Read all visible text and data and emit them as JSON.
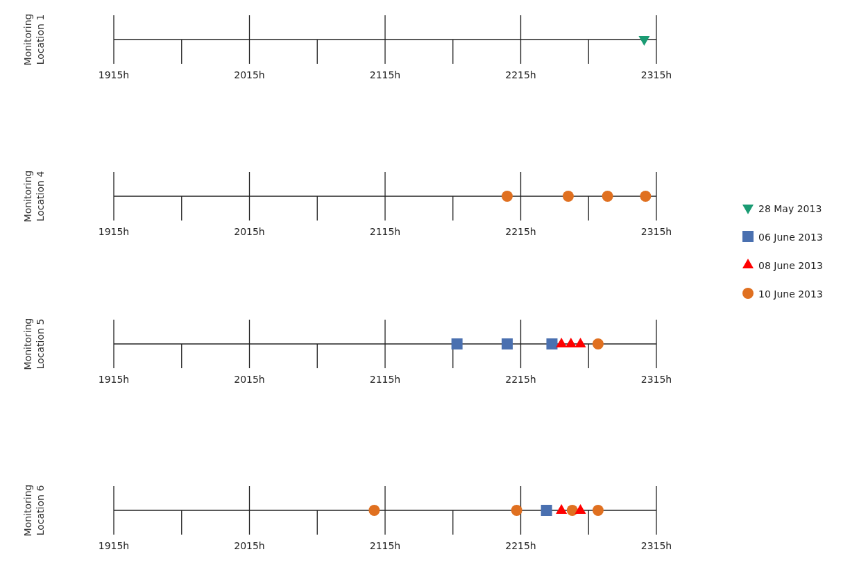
{
  "chart_data": [
    {
      "type": "scatter",
      "orientation": "horizontal",
      "categories": [
        "Monitoring Location 1"
      ],
      "legend": "right",
      "grid": "x",
      "xlim": [
        1915,
        2315
      ],
      "xticks": [
        {
          "value": 1915,
          "label": "1915h"
        },
        {
          "value": 2015,
          "label": "2015h"
        },
        {
          "value": 2115,
          "label": "2115h"
        },
        {
          "value": 2215,
          "label": "2215h"
        },
        {
          "value": 2315,
          "label": "2315h"
        }
      ],
      "series": [
        {
          "name": "28 May 2013",
          "color": "#1a9b73",
          "marker": "triangle-down",
          "values": [
            2306
          ]
        },
        {
          "name": "06 June 2013",
          "color": "#4a70b0",
          "marker": "square",
          "values": [
            null
          ]
        },
        {
          "name": "08 June 2013",
          "color": "#ff0000",
          "marker": "triangle",
          "values": [
            null
          ]
        },
        {
          "name": "10 June 2013",
          "color": "#e07020",
          "marker": "circle",
          "values": [
            null
          ]
        }
      ]
    },
    {
      "type": "scatter",
      "orientation": "horizontal",
      "categories": [
        "Monitoring Location 4"
      ],
      "grid": "x",
      "xlim": [
        1915,
        2315
      ],
      "xticks": [
        {
          "value": 1915,
          "label": "1915h"
        },
        {
          "value": 2015,
          "label": "2015h"
        },
        {
          "value": 2115,
          "label": "2115h"
        },
        {
          "value": 2215,
          "label": "2215h"
        },
        {
          "value": 2315,
          "label": "2315h"
        }
      ],
      "series": [
        {
          "color": "#e07020",
          "marker": "circle",
          "values": [
            2205
          ]
        },
        {
          "color": "#e07020",
          "marker": "circle",
          "values": [
            2250
          ]
        },
        {
          "color": "#e07020",
          "marker": "circle",
          "values": [
            2279
          ]
        },
        {
          "color": "#e07020",
          "marker": "circle",
          "values": [
            2307
          ]
        }
      ]
    },
    {
      "type": "scatter",
      "orientation": "horizontal",
      "categories": [
        "Monitoring Location 5"
      ],
      "grid": "x",
      "xlim": [
        1915,
        2315
      ],
      "xticks": [
        {
          "value": 1915,
          "label": "1915h"
        },
        {
          "value": 2015,
          "label": "2015h"
        },
        {
          "value": 2115,
          "label": "2115h"
        },
        {
          "value": 2215,
          "label": "2215h"
        },
        {
          "value": 2315,
          "label": "2315h"
        }
      ],
      "series": [
        {
          "color": "#4a70b0",
          "marker": "square",
          "values": [
            2168
          ]
        },
        {
          "color": "#4a70b0",
          "marker": "square",
          "values": [
            2205
          ]
        },
        {
          "color": "#4a70b0",
          "marker": "square",
          "values": [
            2238
          ]
        },
        {
          "color": "#ff0000",
          "marker": "triangle",
          "values": [
            2245
          ]
        },
        {
          "color": "#ff0000",
          "marker": "triangle",
          "values": [
            2252
          ]
        },
        {
          "color": "#ff0000",
          "marker": "triangle",
          "values": [
            2259
          ]
        },
        {
          "color": "#e07020",
          "marker": "circle",
          "values": [
            2272
          ]
        }
      ]
    },
    {
      "type": "scatter",
      "orientation": "horizontal",
      "categories": [
        "Monitoring Location 6"
      ],
      "grid": "x",
      "xlim": [
        1915,
        2315
      ],
      "xticks": [
        {
          "value": 1915,
          "label": "1915h"
        },
        {
          "value": 2015,
          "label": "2015h"
        },
        {
          "value": 2115,
          "label": "2115h"
        },
        {
          "value": 2215,
          "label": "2215h"
        },
        {
          "value": 2315,
          "label": "2315h"
        }
      ],
      "series": [
        {
          "color": "#e07020",
          "marker": "circle",
          "values": [
            2107
          ]
        },
        {
          "color": "#e07020",
          "marker": "circle",
          "values": [
            2212
          ]
        },
        {
          "color": "#4a70b0",
          "marker": "square",
          "values": [
            2234
          ]
        },
        {
          "color": "#ff0000",
          "marker": "triangle",
          "values": [
            2245
          ]
        },
        {
          "color": "#e07020",
          "marker": "circle",
          "values": [
            2253
          ]
        },
        {
          "color": "#ff0000",
          "marker": "triangle",
          "values": [
            2259
          ]
        },
        {
          "color": "#e07020",
          "marker": "circle",
          "values": [
            2272
          ]
        }
      ]
    }
  ]
}
